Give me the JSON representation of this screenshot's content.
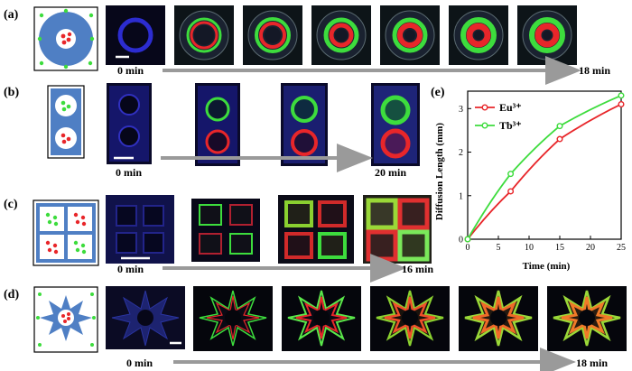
{
  "panels": {
    "a": {
      "label": "(a)",
      "start": "0 min",
      "end": "18 min"
    },
    "b": {
      "label": "(b)",
      "start": "0 min",
      "end": "20 min"
    },
    "c": {
      "label": "(c)",
      "start": "0 min",
      "end": "16 min"
    },
    "d": {
      "label": "(d)",
      "start": "0 min",
      "end": "18 min"
    },
    "e": {
      "label": "(e)"
    }
  },
  "colors": {
    "eu": "#e8262a",
    "tb": "#3ddc3d",
    "hydrogel": "#4f7fc4",
    "uv_background": "#0a0a12"
  },
  "chart_data": {
    "type": "line",
    "xlabel": "Time (min)",
    "ylabel": "Diffusion Length (mm)",
    "xlim": [
      0,
      25
    ],
    "ylim": [
      0,
      3.4
    ],
    "x_ticks": [
      "0",
      "5",
      "10",
      "15",
      "20",
      "25"
    ],
    "y_ticks": [
      "0",
      "1",
      "2",
      "3"
    ],
    "legend": "top-left",
    "series": [
      {
        "name": "Eu³⁺",
        "color": "#e8262a",
        "points": [
          [
            0,
            0
          ],
          [
            7,
            1.1
          ],
          [
            15,
            2.3
          ],
          [
            25,
            3.1
          ]
        ]
      },
      {
        "name": "Tb³⁺",
        "color": "#3ddc3d",
        "points": [
          [
            0,
            0
          ],
          [
            7,
            1.5
          ],
          [
            15,
            2.6
          ],
          [
            25,
            3.3
          ]
        ]
      }
    ]
  }
}
